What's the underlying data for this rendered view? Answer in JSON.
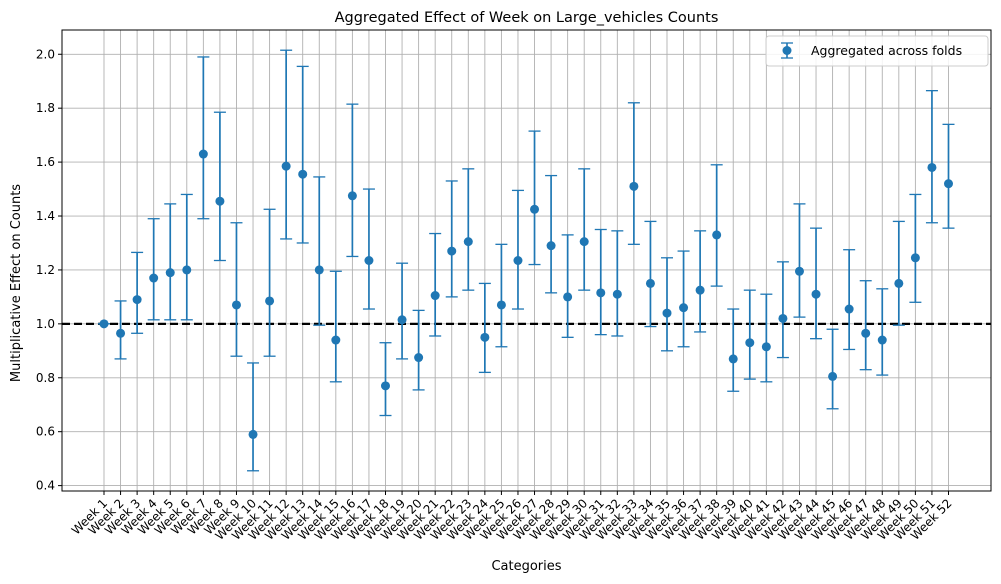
{
  "chart_data": {
    "type": "scatter",
    "title": "Aggregated Effect of Week on Large_vehicles Counts",
    "xlabel": "Categories",
    "ylabel": "Multiplicative Effect on Counts",
    "ylim": [
      0.38,
      2.09
    ],
    "yticks": [
      0.4,
      0.6,
      0.8,
      1.0,
      1.2,
      1.4,
      1.6,
      1.8,
      2.0
    ],
    "ytick_labels": [
      "0.4",
      "0.6",
      "0.8",
      "1.0",
      "1.2",
      "1.4",
      "1.6",
      "1.8",
      "2.0"
    ],
    "grid": true,
    "legend_position": "top-right",
    "reference_line": {
      "y": 1.0,
      "style": "dashed",
      "color": "#000000"
    },
    "series": [
      {
        "name": "Aggregated across folds",
        "color": "#1f77b4",
        "categories": [
          "Week 1",
          "Week 2",
          "Week 3",
          "Week 4",
          "Week 5",
          "Week 6",
          "Week 7",
          "Week 8",
          "Week 9",
          "Week 10",
          "Week 11",
          "Week 12",
          "Week 13",
          "Week 14",
          "Week 15",
          "Week 16",
          "Week 17",
          "Week 18",
          "Week 19",
          "Week 20",
          "Week 21",
          "Week 22",
          "Week 23",
          "Week 24",
          "Week 25",
          "Week 26",
          "Week 27",
          "Week 28",
          "Week 29",
          "Week 30",
          "Week 31",
          "Week 32",
          "Week 33",
          "Week 34",
          "Week 35",
          "Week 36",
          "Week 37",
          "Week 38",
          "Week 39",
          "Week 40",
          "Week 41",
          "Week 42",
          "Week 43",
          "Week 44",
          "Week 45",
          "Week 46",
          "Week 47",
          "Week 48",
          "Week 49",
          "Week 50",
          "Week 51",
          "Week 52"
        ],
        "values": [
          1.0,
          0.965,
          1.09,
          1.17,
          1.19,
          1.2,
          1.63,
          1.455,
          1.07,
          0.59,
          1.085,
          1.585,
          1.555,
          1.2,
          0.94,
          1.475,
          1.235,
          0.77,
          1.015,
          0.875,
          1.105,
          1.27,
          1.305,
          0.95,
          1.07,
          1.235,
          1.425,
          1.29,
          1.1,
          1.305,
          1.115,
          1.11,
          1.51,
          1.15,
          1.04,
          1.06,
          1.125,
          1.33,
          0.87,
          0.93,
          0.915,
          1.02,
          1.195,
          1.11,
          0.805,
          1.055,
          0.965,
          0.94,
          1.15,
          1.245,
          1.58,
          1.52
        ],
        "lower": [
          1.0,
          0.87,
          0.965,
          1.015,
          1.015,
          1.015,
          1.39,
          1.235,
          0.88,
          0.455,
          0.88,
          1.315,
          1.3,
          0.995,
          0.785,
          1.25,
          1.055,
          0.66,
          0.87,
          0.755,
          0.955,
          1.1,
          1.125,
          0.82,
          0.915,
          1.055,
          1.22,
          1.115,
          0.95,
          1.125,
          0.96,
          0.955,
          1.295,
          0.99,
          0.9,
          0.915,
          0.97,
          1.14,
          0.75,
          0.795,
          0.785,
          0.875,
          1.025,
          0.945,
          0.685,
          0.905,
          0.83,
          0.81,
          0.995,
          1.08,
          1.375,
          1.355
        ],
        "upper": [
          1.0,
          1.085,
          1.265,
          1.39,
          1.445,
          1.48,
          1.99,
          1.785,
          1.375,
          0.855,
          1.425,
          2.015,
          1.955,
          1.545,
          1.195,
          1.815,
          1.5,
          0.93,
          1.225,
          1.05,
          1.335,
          1.53,
          1.575,
          1.15,
          1.295,
          1.495,
          1.715,
          1.55,
          1.33,
          1.575,
          1.35,
          1.345,
          1.82,
          1.38,
          1.245,
          1.27,
          1.345,
          1.59,
          1.055,
          1.125,
          1.11,
          1.23,
          1.445,
          1.355,
          0.98,
          1.275,
          1.16,
          1.13,
          1.38,
          1.48,
          1.865,
          1.74
        ]
      }
    ]
  }
}
